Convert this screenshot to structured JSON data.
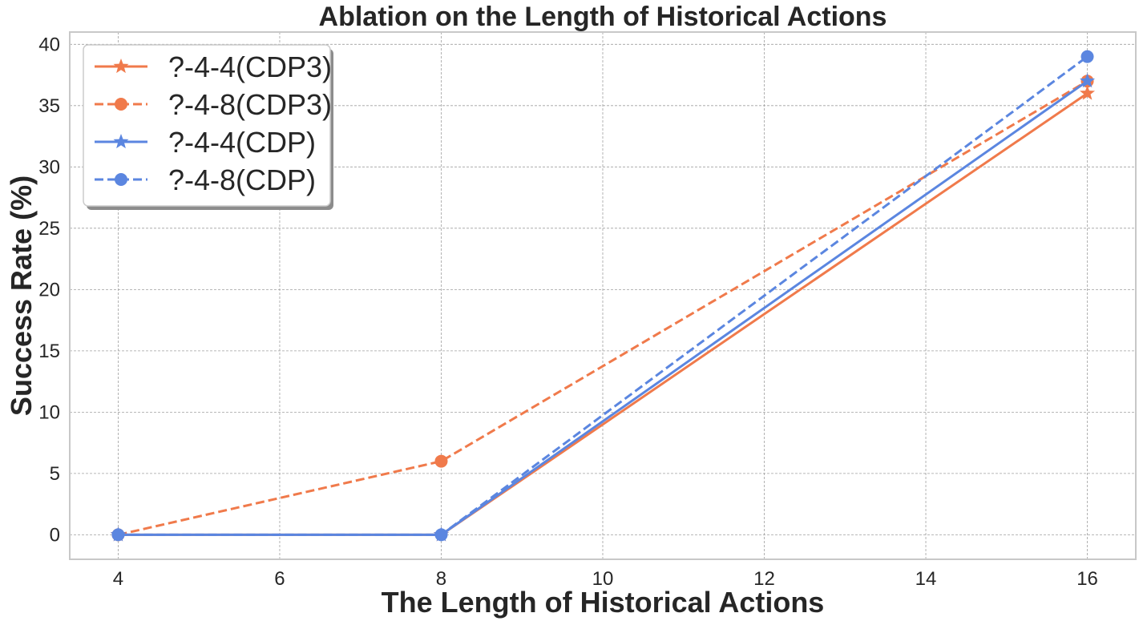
{
  "chart_data": {
    "type": "line",
    "title": "Ablation on the Length of Historical Actions",
    "xlabel": "The Length of Historical Actions",
    "ylabel": "Success Rate (%)",
    "xlim": [
      3.4,
      16.6
    ],
    "ylim": [
      -2,
      41
    ],
    "xticks": [
      4,
      6,
      8,
      10,
      12,
      14,
      16
    ],
    "yticks": [
      0,
      5,
      10,
      15,
      20,
      25,
      30,
      35,
      40
    ],
    "grid": true,
    "legend_position": "top-left",
    "x": [
      4,
      8,
      16
    ],
    "series": [
      {
        "name": "?-4-4(CDP3)",
        "values": [
          0,
          0,
          36
        ],
        "color": "#F07A4B",
        "linestyle": "solid",
        "marker": "star"
      },
      {
        "name": "?-4-8(CDP3)",
        "values": [
          0,
          6,
          37
        ],
        "color": "#F07A4B",
        "linestyle": "dashed",
        "marker": "circle"
      },
      {
        "name": "?-4-4(CDP)",
        "values": [
          0,
          0,
          37
        ],
        "color": "#5B86E0",
        "linestyle": "solid",
        "marker": "star"
      },
      {
        "name": "?-4-8(CDP)",
        "values": [
          0,
          0,
          39
        ],
        "color": "#5B86E0",
        "linestyle": "dashed",
        "marker": "circle"
      }
    ]
  }
}
